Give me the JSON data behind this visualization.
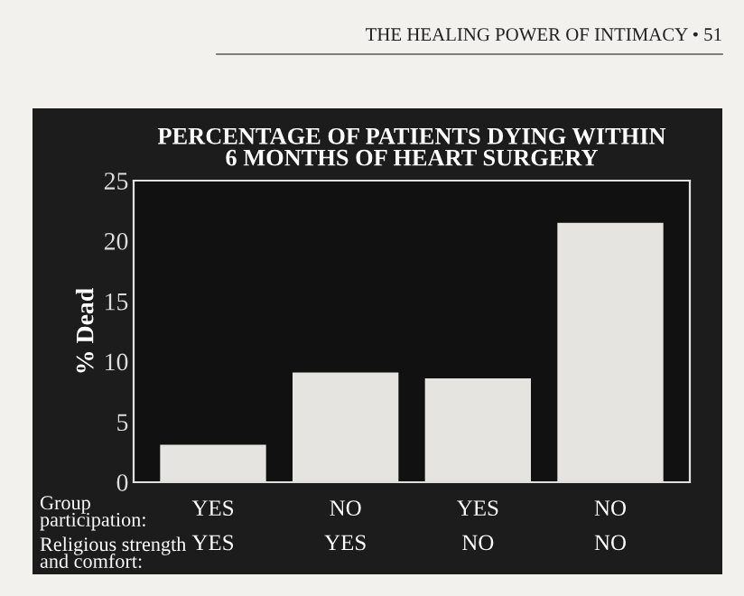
{
  "chart_data": {
    "type": "bar",
    "title": "PERCENTAGE OF PATIENTS DYING WITHIN\n6 MONTHS OF HEART SURGERY",
    "ylabel": "% Dead",
    "categories": [
      "YES\nYES",
      "NO\nYES",
      "YES\nNO",
      "NO\nNO"
    ],
    "values": [
      3.1,
      9.1,
      8.6,
      21.5
    ],
    "color": "#e6e4e0",
    "ylim": [
      0,
      25
    ],
    "yticks": [
      0,
      5,
      10,
      15,
      20,
      25
    ],
    "grid": false,
    "annotations": [
      "THE HEALING POWER OF INTIMACY • 51",
      "Group\nparticipation:",
      "Religious strength\nand comfort:"
    ]
  }
}
